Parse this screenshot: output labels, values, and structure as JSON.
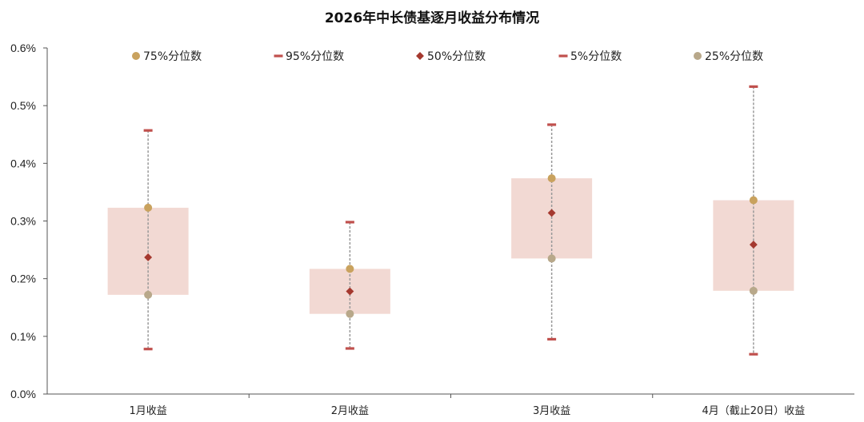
{
  "chart_data": {
    "type": "box",
    "title": "2026年中长债基逐月收益分布情况",
    "categories": [
      "1月收益",
      "2月收益",
      "3月收益",
      "4月（截止20日）收益"
    ],
    "y_ticks": [
      "0.0%",
      "0.1%",
      "0.2%",
      "0.3%",
      "0.4%",
      "0.5%",
      "0.6%"
    ],
    "ylim": [
      0,
      0.6
    ],
    "y_unit": "%",
    "legend_position": "top",
    "series": [
      {
        "name": "75%分位数",
        "key": "p75",
        "marker": "circle",
        "color": "#C9A25E",
        "values": [
          0.323,
          0.217,
          0.374,
          0.336
        ]
      },
      {
        "name": "95%分位数",
        "key": "p95",
        "marker": "dash",
        "color": "#C0504D",
        "values": [
          0.457,
          0.298,
          0.467,
          0.533
        ]
      },
      {
        "name": "50%分位数",
        "key": "p50",
        "marker": "diamond",
        "color": "#A5392F",
        "values": [
          0.237,
          0.178,
          0.314,
          0.259
        ]
      },
      {
        "name": "5%分位数",
        "key": "p5",
        "marker": "dash",
        "color": "#C0504D",
        "values": [
          0.078,
          0.079,
          0.095,
          0.069
        ]
      },
      {
        "name": "25%分位数",
        "key": "p25",
        "marker": "circle",
        "color": "#B8A88A",
        "values": [
          0.172,
          0.139,
          0.235,
          0.179
        ]
      }
    ],
    "box_color": "#F2D9D3",
    "whisker_color": "#999999"
  }
}
